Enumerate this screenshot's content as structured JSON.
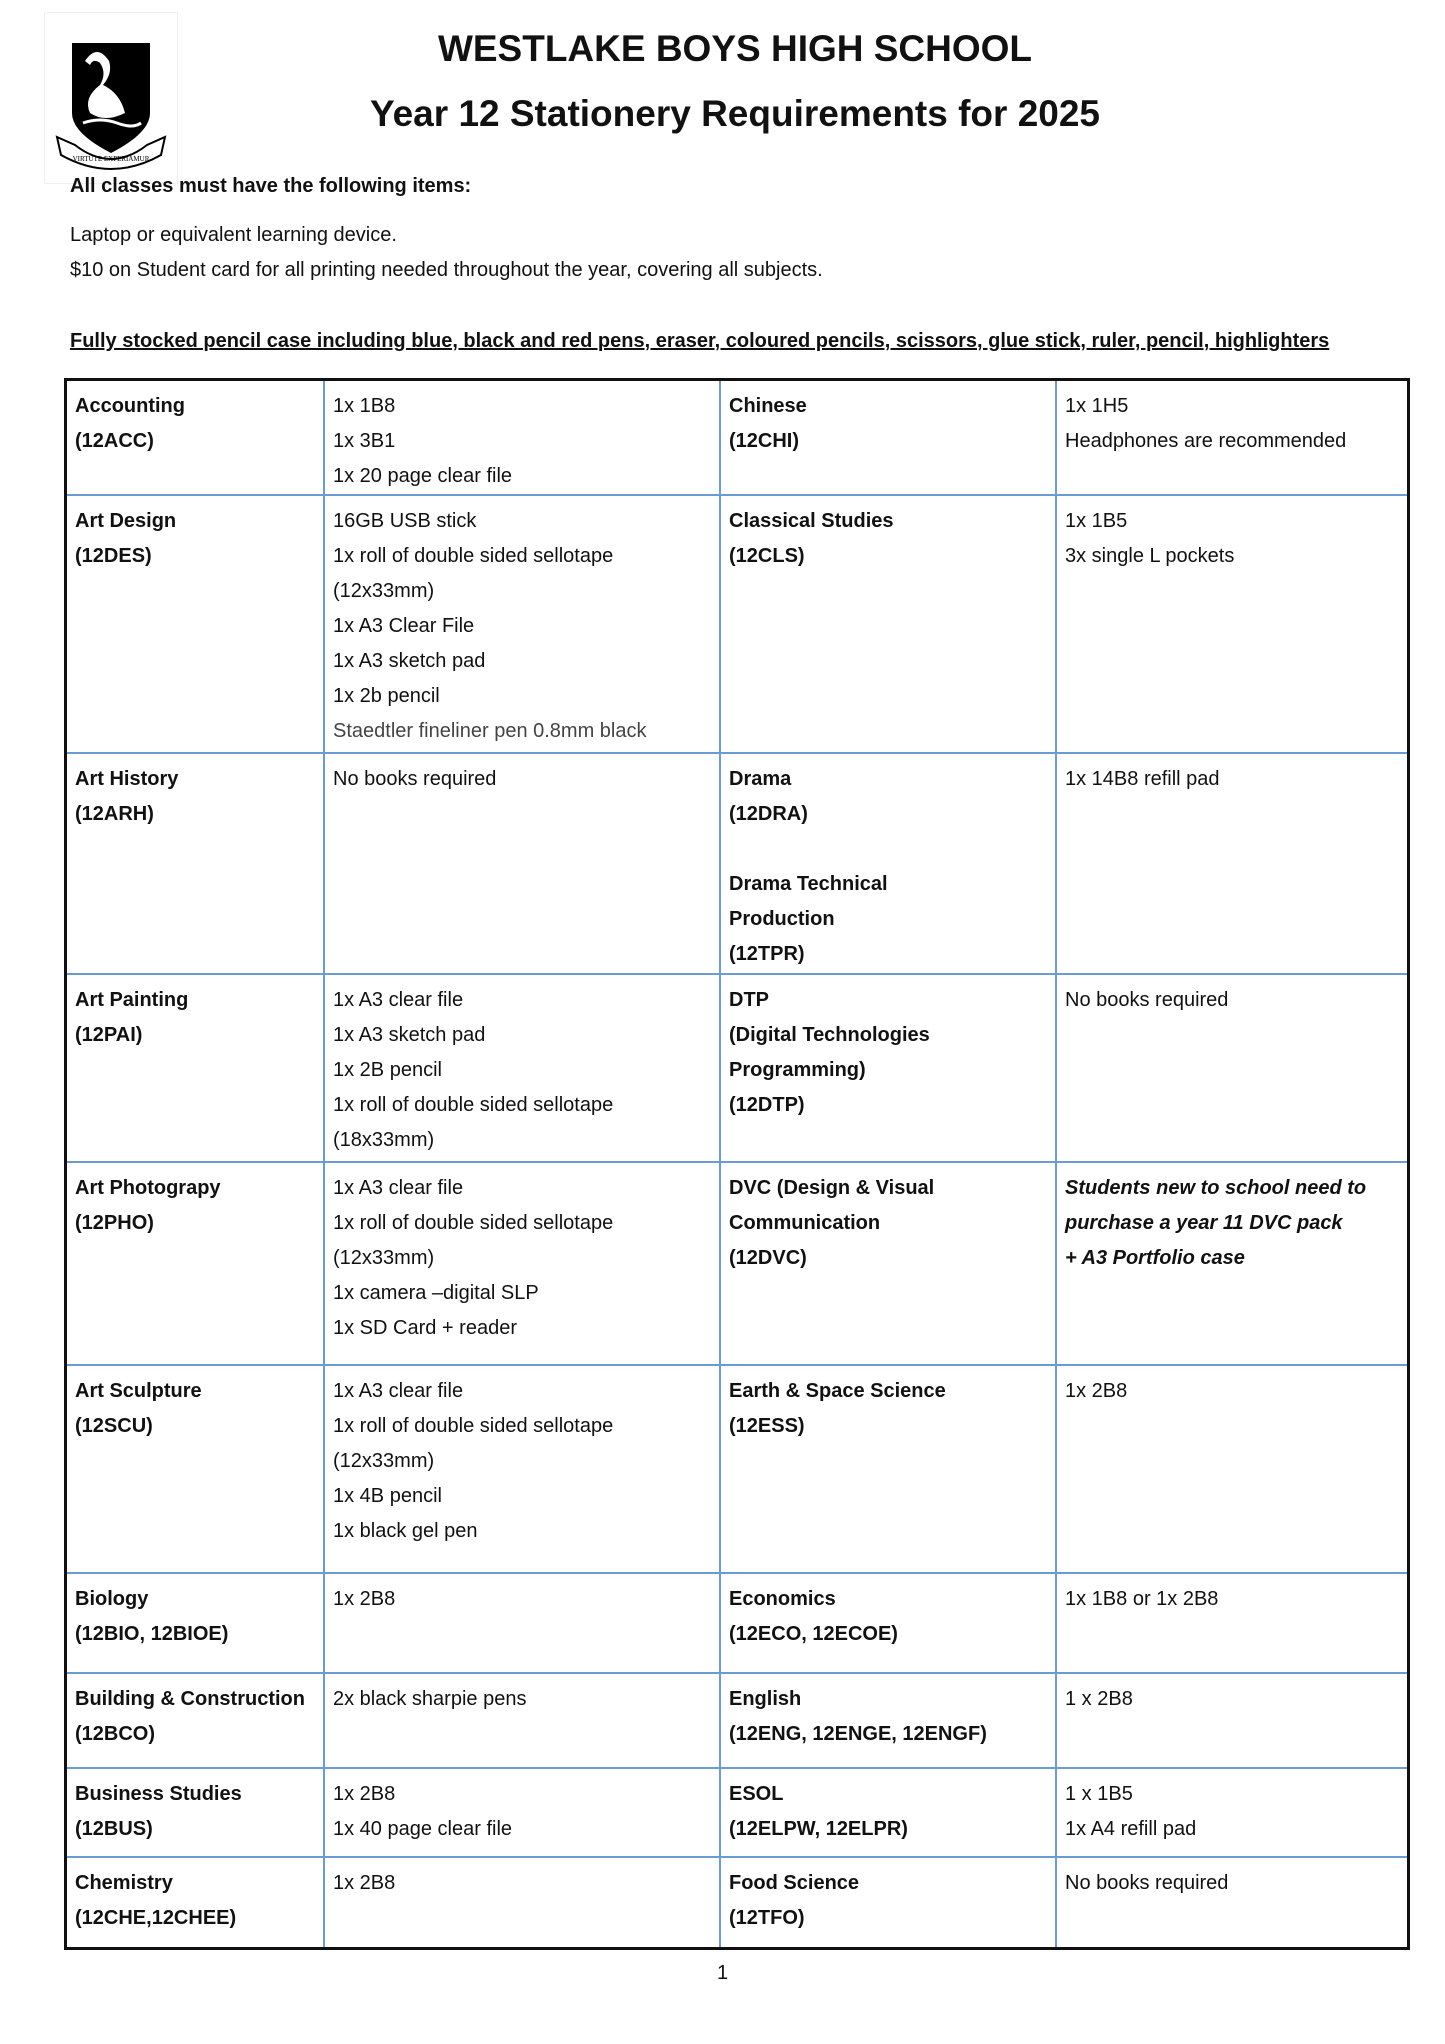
{
  "header": {
    "school": "WESTLAKE BOYS HIGH SCHOOL",
    "title": "Year 12 Stationery Requirements for 2025",
    "logo_motto": "VIRTUTE EXPERIAMUR"
  },
  "intro": {
    "heading": "All classes must have the following items:",
    "line1": "Laptop or equivalent learning device.",
    "line2": "$10 on Student card for all printing needed throughout the year, covering all subjects.",
    "pencil_case": "Fully stocked pencil case including blue, black and red pens, eraser, coloured pencils, scissors, glue stick, ruler, pencil,  highlighters"
  },
  "rows": [
    {
      "left_subject": [
        "Accounting",
        "(12ACC)"
      ],
      "left_items": [
        "1x 1B8",
        "1x 3B1",
        "1x 20 page clear file"
      ],
      "right_subject": [
        "Chinese",
        "(12CHI)"
      ],
      "right_items": [
        "1x 1H5",
        "Headphones are recommended"
      ]
    },
    {
      "left_subject": [
        "Art Design",
        "(12DES)"
      ],
      "left_items": [
        "16GB USB stick",
        "1x roll of double sided sellotape",
        "(12x33mm)",
        "1x A3 Clear File",
        "1x A3 sketch pad",
        "1x 2b pencil",
        "Staedtler fineliner pen 0.8mm black"
      ],
      "right_subject": [
        "Classical Studies",
        "(12CLS)"
      ],
      "right_items": [
        "1x 1B5",
        "3x single L pockets"
      ]
    },
    {
      "left_subject": [
        "Art History",
        "(12ARH)"
      ],
      "left_items": [
        "No books required"
      ],
      "right_subject": [
        "Drama",
        "(12DRA)",
        "",
        "Drama Technical",
        "Production",
        "(12TPR)"
      ],
      "right_items": [
        "1x 14B8 refill pad"
      ]
    },
    {
      "left_subject": [
        "Art Painting",
        "(12PAI)"
      ],
      "left_items": [
        "1x A3 clear file",
        "1x A3 sketch pad",
        "1x 2B pencil",
        "1x roll of double sided sellotape",
        "(18x33mm)"
      ],
      "right_subject": [
        "DTP",
        "(Digital Technologies",
        "Programming)",
        "(12DTP)"
      ],
      "right_items": [
        "No books required"
      ]
    },
    {
      "left_subject": [
        "Art Photograpy",
        "(12PHO)"
      ],
      "left_items": [
        "1x A3 clear file",
        "1x roll of double sided sellotape",
        "(12x33mm)",
        "1x camera –digital SLP",
        "1x SD Card + reader"
      ],
      "right_subject": [
        "DVC (Design & Visual",
        "Communication",
        "(12DVC)"
      ],
      "right_items": [
        "Students new to school need to",
        "purchase a year 11 DVC pack",
        "+ A3 Portfolio case"
      ],
      "right_italic": true
    },
    {
      "left_subject": [
        "Art Sculpture",
        "(12SCU)"
      ],
      "left_items": [
        "1x A3 clear file",
        "1x roll of double sided sellotape",
        "(12x33mm)",
        "1x 4B pencil",
        "1x black gel pen"
      ],
      "right_subject": [
        "Earth & Space Science",
        "(12ESS)"
      ],
      "right_items": [
        "1x  2B8"
      ]
    },
    {
      "left_subject": [
        "Biology",
        "(12BIO, 12BIOE)"
      ],
      "left_items": [
        "1x 2B8"
      ],
      "right_subject": [
        "Economics",
        "(12ECO, 12ECOE)"
      ],
      "right_items": [
        "1x 1B8  or 1x 2B8"
      ]
    },
    {
      "left_subject": [
        "Building & Construction",
        "(12BCO)"
      ],
      "left_items": [
        "2x black sharpie pens"
      ],
      "right_subject": [
        "English",
        "(12ENG, 12ENGE, 12ENGF)"
      ],
      "right_items": [
        "1 x 2B8"
      ]
    },
    {
      "left_subject": [
        "Business Studies",
        "(12BUS)"
      ],
      "left_items": [
        "1x 2B8",
        "1x 40 page clear file"
      ],
      "right_subject": [
        "ESOL",
        "(12ELPW, 12ELPR)"
      ],
      "right_items": [
        "1 x 1B5",
        "1x A4 refill pad"
      ]
    },
    {
      "left_subject": [
        "Chemistry",
        "(12CHE,12CHEE)"
      ],
      "left_items": [
        "1x 2B8"
      ],
      "right_subject": [
        "Food Science",
        "(12TFO)"
      ],
      "right_items": [
        "No books required"
      ]
    }
  ],
  "footer": {
    "page_number": "1"
  }
}
